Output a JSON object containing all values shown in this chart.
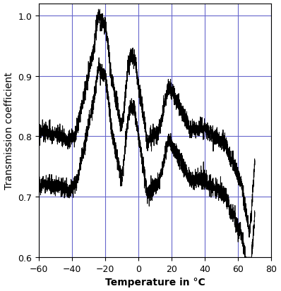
{
  "xlabel": "Temperature in °C",
  "ylabel": "Transmission coefficient",
  "xlim": [
    -60,
    80
  ],
  "ylim": [
    0.6,
    1.02
  ],
  "xticks": [
    -60,
    -40,
    -20,
    0,
    20,
    40,
    60,
    80
  ],
  "yticks": [
    0.6,
    0.7,
    0.8,
    0.9,
    1.0
  ],
  "grid_color": "#6666cc",
  "line_color": "#000000",
  "line_width": 0.7,
  "background_color": "#ffffff",
  "xlabel_fontsize": 10,
  "ylabel_fontsize": 10,
  "tick_fontsize": 9,
  "figsize": [
    3.98,
    4.14
  ],
  "dpi": 100
}
